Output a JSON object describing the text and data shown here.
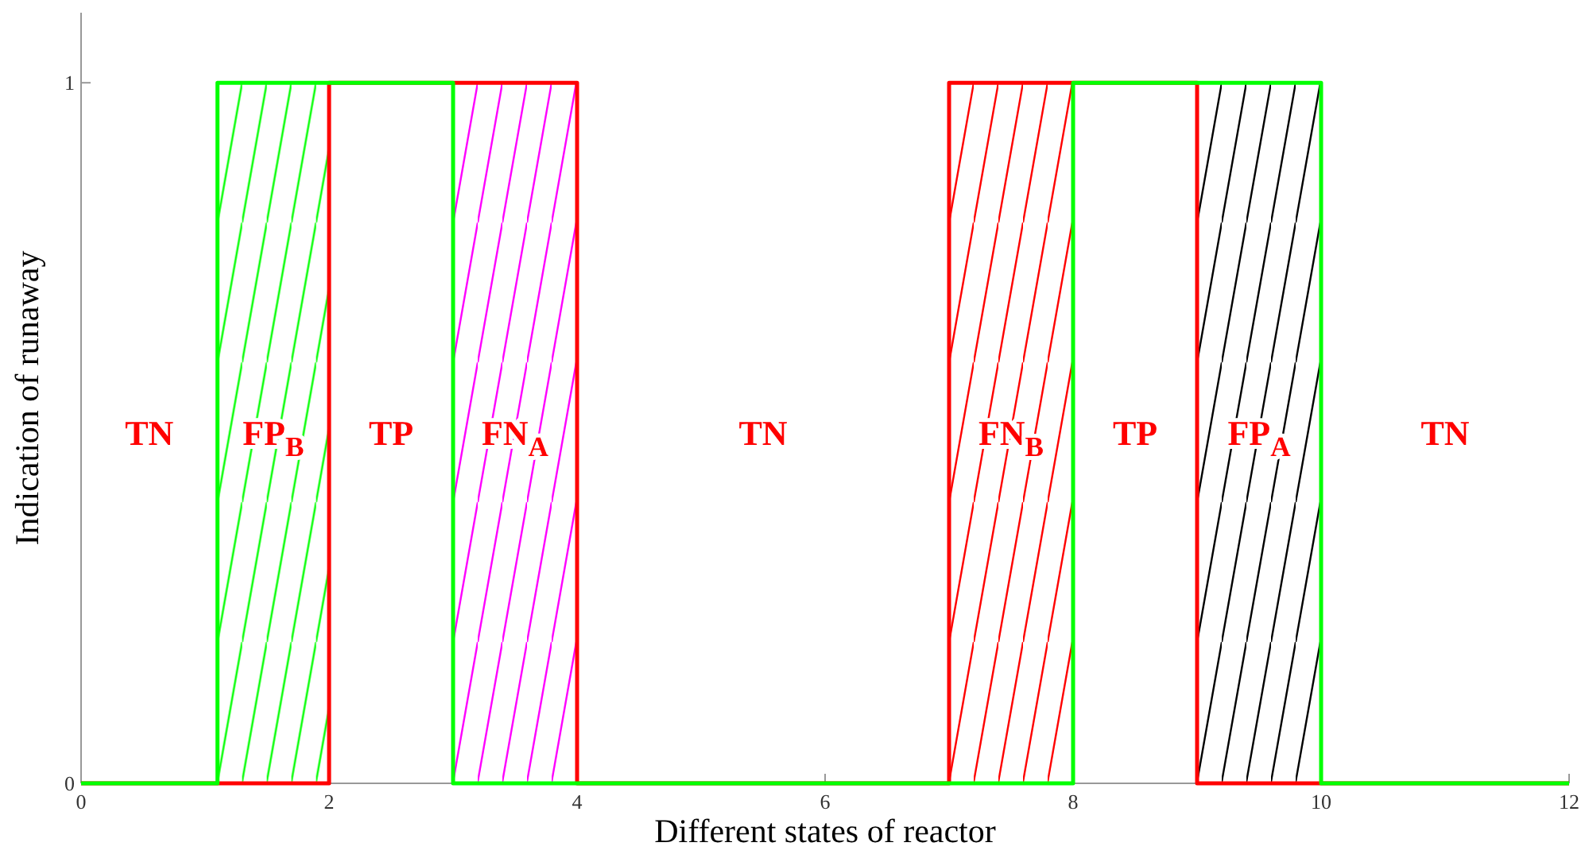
{
  "chart_data": {
    "type": "step",
    "xlabel": "Different states of reactor",
    "ylabel": "Indication of runaway",
    "xlim": [
      0,
      12
    ],
    "xticks": [
      0,
      2,
      4,
      6,
      8,
      10,
      12
    ],
    "ylim": [
      0,
      1.1
    ],
    "yticks": [
      0,
      1
    ],
    "series": [
      {
        "color": "#ff0000",
        "x": [
          0,
          2,
          4,
          7,
          9,
          12
        ],
        "values": [
          0,
          1,
          0,
          1,
          0,
          0
        ]
      },
      {
        "color": "#00ff00",
        "x": [
          0,
          1.1,
          3,
          8,
          10,
          12
        ],
        "values": [
          0,
          1,
          0,
          1,
          0,
          0
        ]
      }
    ],
    "bands": [
      {
        "axis": "x",
        "from": 1.1,
        "to": 2,
        "label": "FP$_{B}$",
        "color": "#00ff00"
      },
      {
        "axis": "x",
        "from": 3,
        "to": 4,
        "label": "FN$_{A}$",
        "color": "#ff00ff"
      },
      {
        "axis": "x",
        "from": 7,
        "to": 8,
        "label": "FN$_{B}$",
        "color": "#ff0000"
      },
      {
        "axis": "x",
        "from": 9,
        "to": 10,
        "label": "FP$_{A}$",
        "color": "#000000"
      }
    ],
    "annotations": [
      "TN",
      "TP",
      "TN",
      "TP",
      "TN"
    ]
  }
}
